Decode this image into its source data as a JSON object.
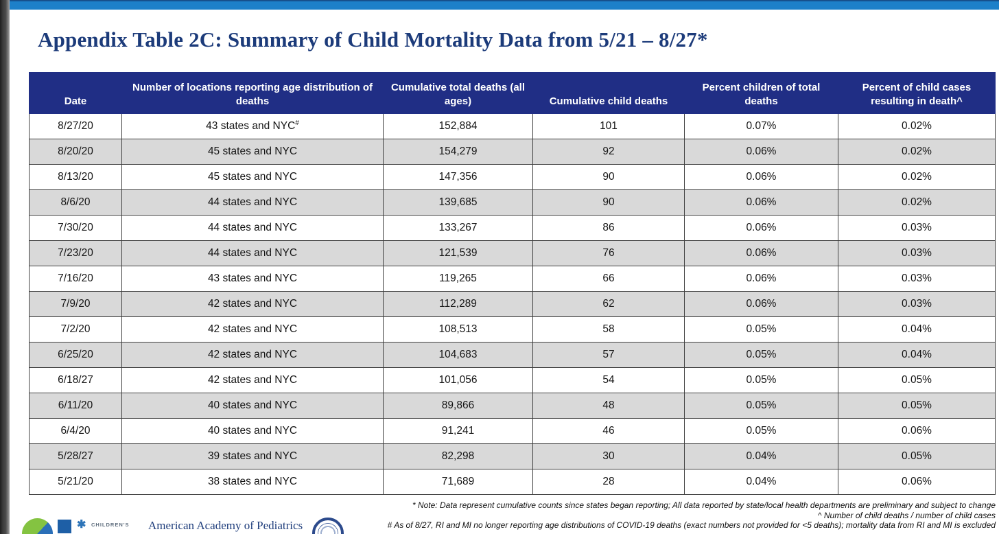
{
  "page": {
    "title": "Appendix Table 2C: Summary of Child Mortality Data from 5/21 – 8/27*"
  },
  "table": {
    "columns": [
      {
        "key": "date",
        "label": "Date"
      },
      {
        "key": "locations",
        "label": "Number of locations reporting age distribution of deaths"
      },
      {
        "key": "total_deaths",
        "label": "Cumulative total deaths (all ages)"
      },
      {
        "key": "child_deaths",
        "label": "Cumulative child deaths"
      },
      {
        "key": "pct_children_of_total_deaths",
        "label": "Percent children of total deaths"
      },
      {
        "key": "pct_child_cases_resulting_in_death",
        "label": "Percent of child cases resulting in death^"
      }
    ],
    "rows": [
      {
        "date": "8/27/20",
        "locations": "43 states and NYC",
        "locations_sup": "#",
        "total_deaths": "152,884",
        "child_deaths": "101",
        "pct_children_of_total_deaths": "0.07%",
        "pct_child_cases_resulting_in_death": "0.02%"
      },
      {
        "date": "8/20/20",
        "locations": "45 states and NYC",
        "total_deaths": "154,279",
        "child_deaths": "92",
        "pct_children_of_total_deaths": "0.06%",
        "pct_child_cases_resulting_in_death": "0.02%"
      },
      {
        "date": "8/13/20",
        "locations": "45 states and NYC",
        "total_deaths": "147,356",
        "child_deaths": "90",
        "pct_children_of_total_deaths": "0.06%",
        "pct_child_cases_resulting_in_death": "0.02%"
      },
      {
        "date": "8/6/20",
        "locations": "44 states and NYC",
        "total_deaths": "139,685",
        "child_deaths": "90",
        "pct_children_of_total_deaths": "0.06%",
        "pct_child_cases_resulting_in_death": "0.02%"
      },
      {
        "date": "7/30/20",
        "locations": "44 states and NYC",
        "total_deaths": "133,267",
        "child_deaths": "86",
        "pct_children_of_total_deaths": "0.06%",
        "pct_child_cases_resulting_in_death": "0.03%"
      },
      {
        "date": "7/23/20",
        "locations": "44 states and NYC",
        "total_deaths": "121,539",
        "child_deaths": "76",
        "pct_children_of_total_deaths": "0.06%",
        "pct_child_cases_resulting_in_death": "0.03%"
      },
      {
        "date": "7/16/20",
        "locations": "43 states and NYC",
        "total_deaths": "119,265",
        "child_deaths": "66",
        "pct_children_of_total_deaths": "0.06%",
        "pct_child_cases_resulting_in_death": "0.03%"
      },
      {
        "date": "7/9/20",
        "locations": "42 states and NYC",
        "total_deaths": "112,289",
        "child_deaths": "62",
        "pct_children_of_total_deaths": "0.06%",
        "pct_child_cases_resulting_in_death": "0.03%"
      },
      {
        "date": "7/2/20",
        "locations": "42 states and NYC",
        "total_deaths": "108,513",
        "child_deaths": "58",
        "pct_children_of_total_deaths": "0.05%",
        "pct_child_cases_resulting_in_death": "0.04%"
      },
      {
        "date": "6/25/20",
        "locations": "42 states and NYC",
        "total_deaths": "104,683",
        "child_deaths": "57",
        "pct_children_of_total_deaths": "0.05%",
        "pct_child_cases_resulting_in_death": "0.04%"
      },
      {
        "date": "6/18/27",
        "locations": "42 states and NYC",
        "total_deaths": "101,056",
        "child_deaths": "54",
        "pct_children_of_total_deaths": "0.05%",
        "pct_child_cases_resulting_in_death": "0.05%"
      },
      {
        "date": "6/11/20",
        "locations": "40 states and NYC",
        "total_deaths": "89,866",
        "child_deaths": "48",
        "pct_children_of_total_deaths": "0.05%",
        "pct_child_cases_resulting_in_death": "0.05%"
      },
      {
        "date": "6/4/20",
        "locations": "40 states and NYC",
        "total_deaths": "91,241",
        "child_deaths": "46",
        "pct_children_of_total_deaths": "0.05%",
        "pct_child_cases_resulting_in_death": "0.06%"
      },
      {
        "date": "5/28/27",
        "locations": "39 states and NYC",
        "total_deaths": "82,298",
        "child_deaths": "30",
        "pct_children_of_total_deaths": "0.04%",
        "pct_child_cases_resulting_in_death": "0.05%"
      },
      {
        "date": "5/21/20",
        "locations": "38 states and NYC",
        "total_deaths": "71,689",
        "child_deaths": "28",
        "pct_children_of_total_deaths": "0.04%",
        "pct_child_cases_resulting_in_death": "0.06%"
      }
    ]
  },
  "notes": [
    "* Note: Data represent cumulative counts since states began reporting; All data reported by state/local health departments are preliminary and subject to change",
    "^ Number of child deaths / number of child cases",
    "# As of 8/27, RI and MI no longer reporting age distributions of COVID-19 deaths (exact numbers not provided for <5 deaths); mortality data from RI and MI is excluded"
  ],
  "footer_logos": {
    "childrens_label": "CHILDREN'S",
    "aap_label": "American Academy of Pediatrics"
  },
  "colors": {
    "top_bar": "#1d80c9",
    "window_edge": "#3c3c3c",
    "title_text": "#1c3b7a",
    "table_header_bg": "#202e85",
    "table_header_text": "#ffffff",
    "row_alt_bg": "#d9d9d9",
    "cell_border": "#404040"
  }
}
